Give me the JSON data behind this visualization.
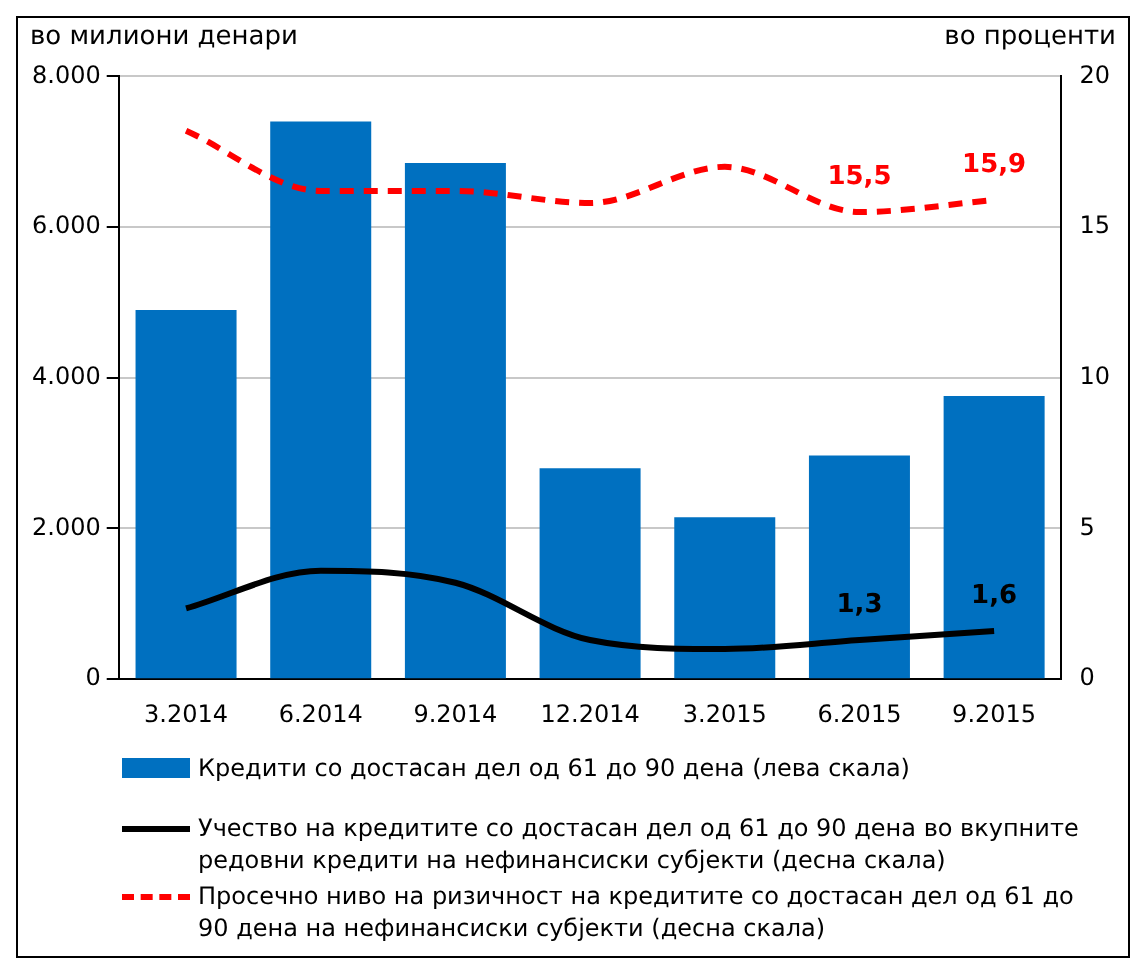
{
  "chart_data": {
    "type": "bar",
    "ylabel": "во милиони денари",
    "y2label": "во проценти",
    "categories": [
      "3.2014",
      "6.2014",
      "9.2014",
      "12.2014",
      "3.2015",
      "6.2015",
      "9.2015"
    ],
    "series": [
      {
        "name": "Кредити со достасан дел од 61 до 90 дена (лева скала)",
        "color": "#0070c0",
        "values": [
          4900,
          7400,
          6850,
          2800,
          2150,
          2970,
          3760
        ]
      },
      {
        "name": "Учество на кредитите со достасан дел од 61 до 90 дена во вкупните редовни кредити на нефинансиски субјекти (десна скала)",
        "type": "line",
        "axis": "y2",
        "color": "#000000",
        "line_style": "solid",
        "values": [
          2.35,
          3.6,
          3.2,
          1.3,
          1.0,
          1.3,
          1.6
        ],
        "value_labels": [
          null,
          null,
          null,
          null,
          null,
          "1,3",
          "1,6"
        ]
      },
      {
        "name": "Просечно ниво на ризичност на кредитите со достасан дел од 61 до 90 дена на нефинансиски субјекти (десна скала)",
        "type": "line",
        "axis": "y2",
        "color": "#ff0000",
        "line_style": "dashed",
        "values": [
          18.2,
          16.2,
          16.2,
          15.8,
          17.0,
          15.5,
          15.9
        ],
        "value_labels": [
          null,
          null,
          null,
          null,
          null,
          "15,5",
          "15,9"
        ]
      }
    ],
    "ylim": [
      0,
      8000
    ],
    "yticks": [
      {
        "value": 0,
        "label": "0"
      },
      {
        "value": 2000,
        "label": "2.000"
      },
      {
        "value": 4000,
        "label": "4.000"
      },
      {
        "value": 6000,
        "label": "6.000"
      },
      {
        "value": 8000,
        "label": "8.000"
      }
    ],
    "y2lim": [
      0,
      20
    ],
    "y2ticks": [
      0,
      5,
      10,
      15,
      20
    ],
    "grid": "y",
    "legend": "bottom",
    "marker": "none"
  }
}
